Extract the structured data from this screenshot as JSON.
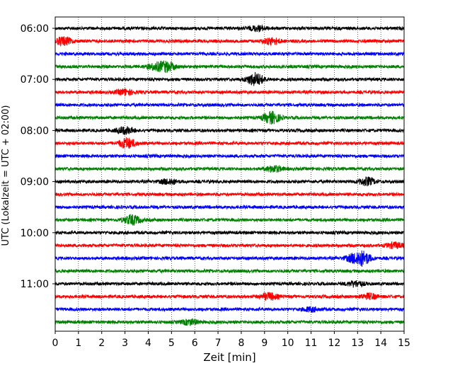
{
  "chart_data": {
    "type": "line",
    "title": "",
    "xlabel": "Zeit  [min]",
    "ylabel": "UTC (Lokalzeit = UTC + 02:00)",
    "xlim": [
      0,
      15
    ],
    "x_ticks": [
      0,
      1,
      2,
      3,
      4,
      5,
      6,
      7,
      8,
      9,
      10,
      11,
      12,
      13,
      14,
      15
    ],
    "x_grid": "dotted",
    "y_tick_labels": [
      "06:00",
      "07:00",
      "08:00",
      "09:00",
      "10:00",
      "11:00"
    ],
    "trace_interval_minutes": 15,
    "first_trace": "06:00",
    "trace_colors": [
      "#000000",
      "#ff0000",
      "#0000ff",
      "#008000"
    ],
    "traces": [
      {
        "start": "06:00",
        "color": "#000000",
        "events": [
          {
            "t": 8.7,
            "amp": 0.7
          }
        ]
      },
      {
        "start": "06:15",
        "color": "#ff0000",
        "events": [
          {
            "t": 0.35,
            "amp": 1.2
          },
          {
            "t": 9.3,
            "amp": 0.9
          }
        ]
      },
      {
        "start": "06:30",
        "color": "#0000ff",
        "events": []
      },
      {
        "start": "06:45",
        "color": "#008000",
        "events": [
          {
            "t": 4.8,
            "amp": 1.4
          },
          {
            "t": 4.3,
            "amp": 0.9
          }
        ]
      },
      {
        "start": "07:00",
        "color": "#000000",
        "events": [
          {
            "t": 8.6,
            "amp": 1.9
          }
        ]
      },
      {
        "start": "07:15",
        "color": "#ff0000",
        "events": [
          {
            "t": 3.0,
            "amp": 0.8
          }
        ]
      },
      {
        "start": "07:30",
        "color": "#0000ff",
        "events": []
      },
      {
        "start": "07:45",
        "color": "#008000",
        "events": [
          {
            "t": 9.3,
            "amp": 1.7
          }
        ]
      },
      {
        "start": "08:00",
        "color": "#000000",
        "events": [
          {
            "t": 3.0,
            "amp": 1.0
          }
        ]
      },
      {
        "start": "08:15",
        "color": "#ff0000",
        "events": [
          {
            "t": 3.1,
            "amp": 1.5
          }
        ]
      },
      {
        "start": "08:30",
        "color": "#0000ff",
        "events": []
      },
      {
        "start": "08:45",
        "color": "#008000",
        "events": [
          {
            "t": 9.4,
            "amp": 0.9
          }
        ]
      },
      {
        "start": "09:00",
        "color": "#000000",
        "events": [
          {
            "t": 4.9,
            "amp": 0.8
          },
          {
            "t": 13.4,
            "amp": 1.1
          }
        ]
      },
      {
        "start": "09:15",
        "color": "#ff0000",
        "events": []
      },
      {
        "start": "09:30",
        "color": "#0000ff",
        "events": []
      },
      {
        "start": "09:45",
        "color": "#008000",
        "events": [
          {
            "t": 3.3,
            "amp": 1.4
          }
        ]
      },
      {
        "start": "10:00",
        "color": "#000000",
        "events": []
      },
      {
        "start": "10:15",
        "color": "#ff0000",
        "events": [
          {
            "t": 14.6,
            "amp": 0.8
          }
        ]
      },
      {
        "start": "10:30",
        "color": "#0000ff",
        "events": [
          {
            "t": 13.2,
            "amp": 2.0
          },
          {
            "t": 12.8,
            "amp": 0.9
          }
        ]
      },
      {
        "start": "10:45",
        "color": "#008000",
        "events": []
      },
      {
        "start": "11:00",
        "color": "#000000",
        "events": [
          {
            "t": 12.9,
            "amp": 0.8
          }
        ]
      },
      {
        "start": "11:15",
        "color": "#ff0000",
        "events": [
          {
            "t": 9.2,
            "amp": 1.0
          },
          {
            "t": 13.5,
            "amp": 0.8
          }
        ]
      },
      {
        "start": "11:30",
        "color": "#0000ff",
        "events": [
          {
            "t": 11.0,
            "amp": 0.6
          }
        ]
      },
      {
        "start": "11:45",
        "color": "#008000",
        "events": [
          {
            "t": 5.8,
            "amp": 0.8
          }
        ]
      }
    ]
  }
}
